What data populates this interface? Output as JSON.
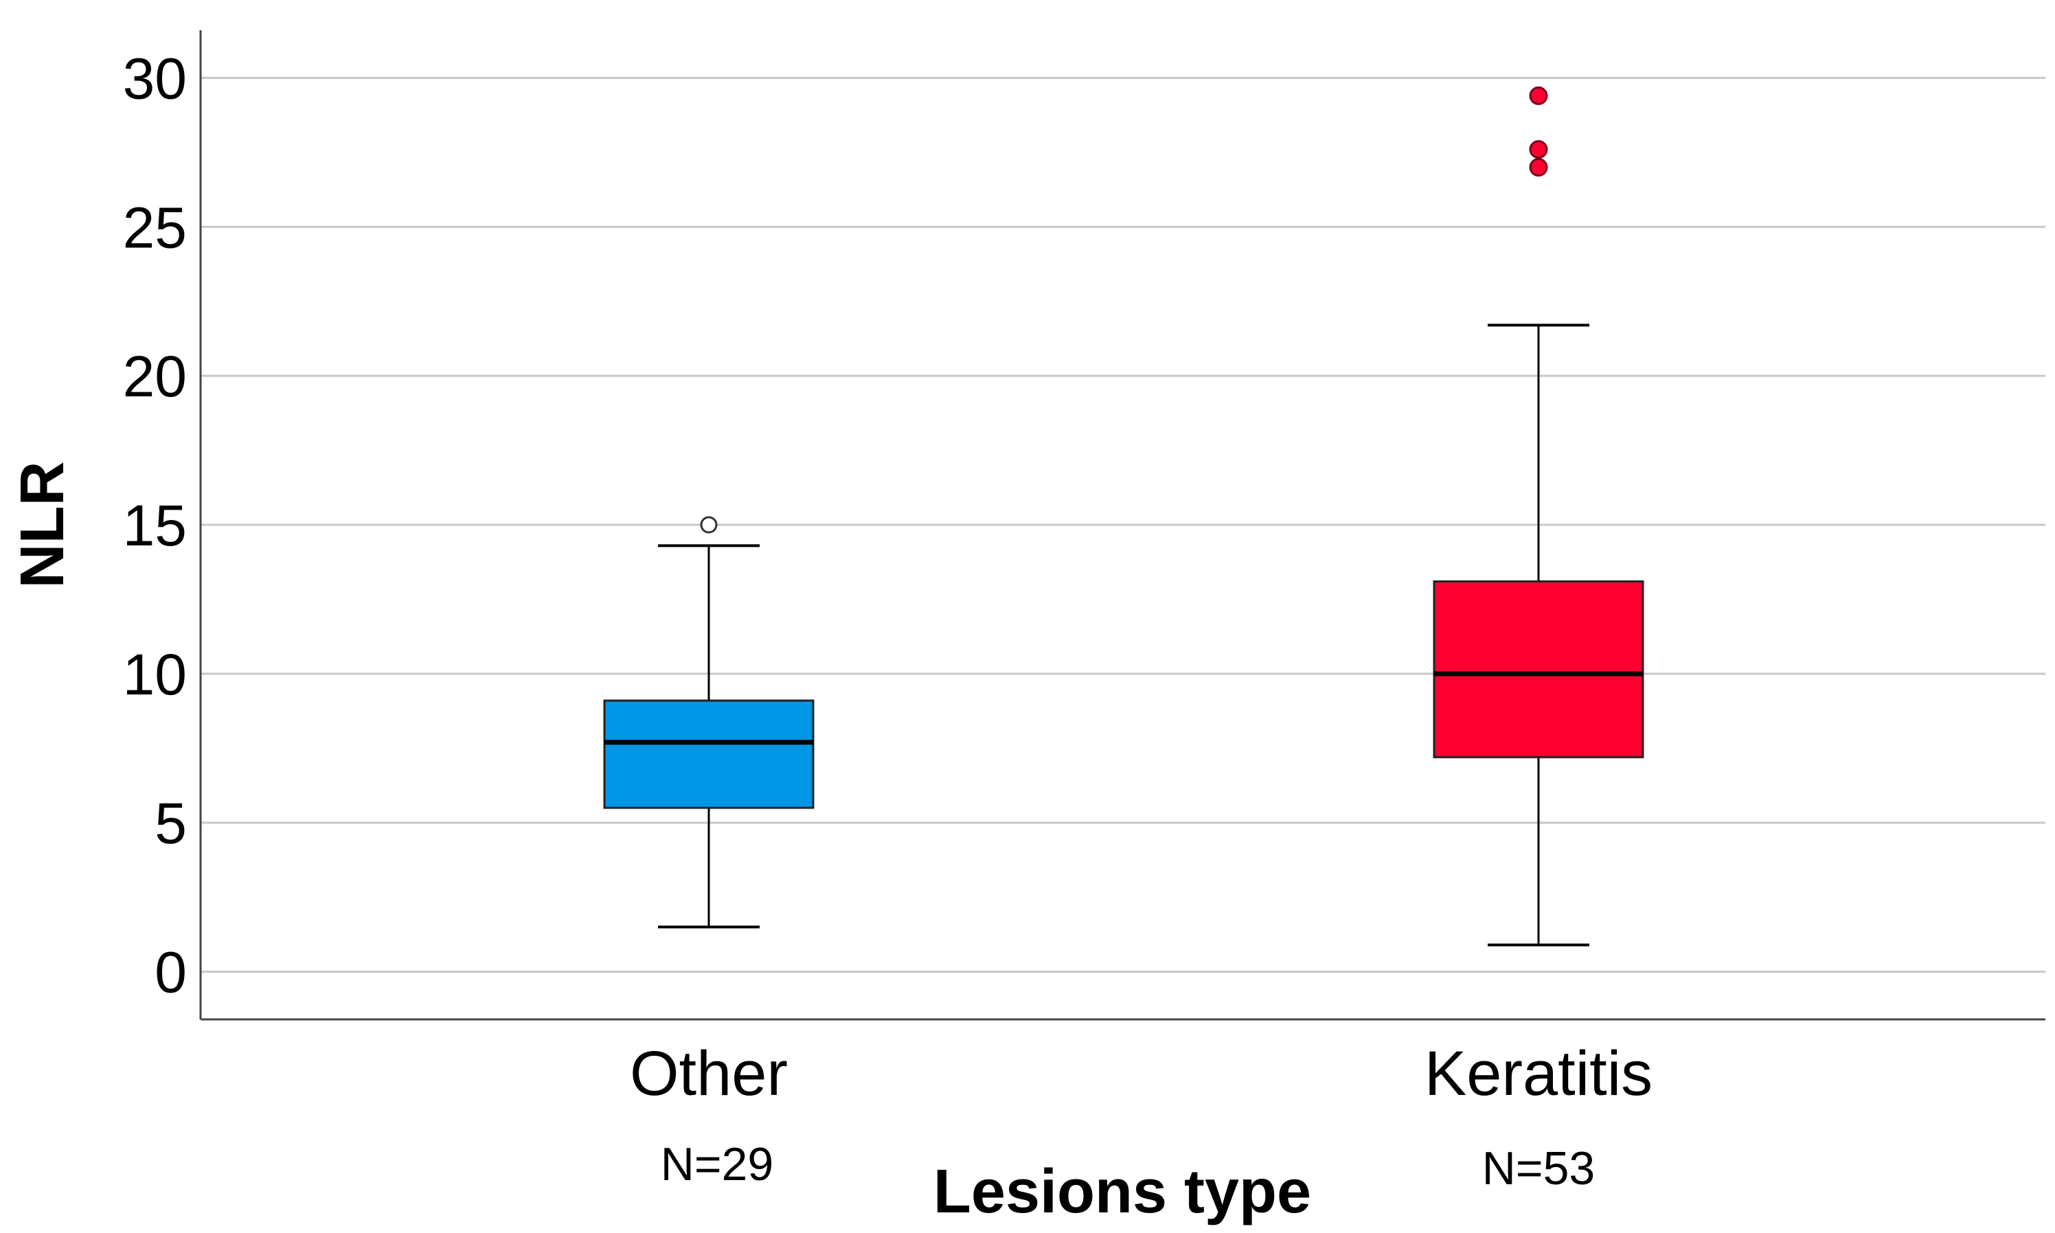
{
  "chart_data": {
    "type": "boxplot",
    "title": "",
    "xlabel": "Lesions type",
    "ylabel": "NLR",
    "ylim": [
      -1.6,
      31.6
    ],
    "yticks": [
      0,
      5,
      10,
      15,
      20,
      25,
      30
    ],
    "grid": true,
    "categories": [
      "Other",
      "Keratitis"
    ],
    "sample_sizes": [
      "N=29",
      "N=53"
    ],
    "groups": [
      {
        "category": "Other",
        "n_label": "N=29",
        "color": "#0095e5",
        "whisker_low": 1.5,
        "q1": 5.5,
        "median": 7.7,
        "q3": 9.1,
        "whisker_high": 14.3,
        "outliers": [
          15.0
        ],
        "outlier_style": "hollow"
      },
      {
        "category": "Keratitis",
        "n_label": "N=53",
        "color": "#ff0033",
        "whisker_low": 0.9,
        "q1": 7.2,
        "median": 10.0,
        "q3": 13.1,
        "whisker_high": 21.7,
        "outliers": [
          27.0,
          27.6,
          29.4
        ],
        "outlier_style": "filled"
      }
    ]
  }
}
